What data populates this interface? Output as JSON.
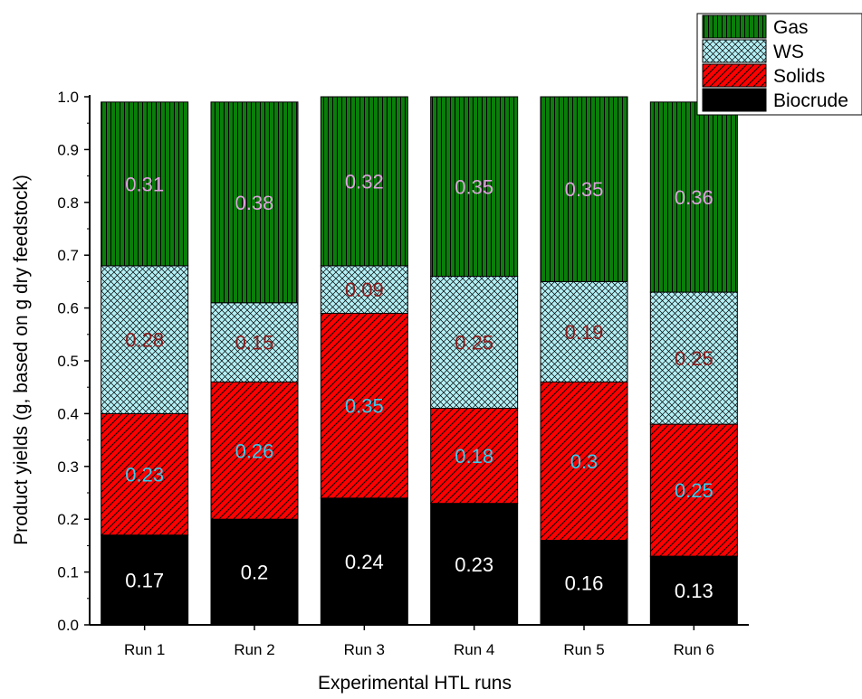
{
  "chart_data": {
    "type": "bar",
    "stacked": true,
    "categories": [
      "Run 1",
      "Run 2",
      "Run 3",
      "Run 4",
      "Run 5",
      "Run 6"
    ],
    "series": [
      {
        "name": "Biocrude",
        "values": [
          0.17,
          0.2,
          0.24,
          0.23,
          0.16,
          0.13
        ],
        "labels": [
          "0.17",
          "0.2",
          "0.24",
          "0.23",
          "0.16",
          "0.13"
        ],
        "color": "#000000",
        "pattern": "solid",
        "label_color": "#ffffff"
      },
      {
        "name": "Solids",
        "values": [
          0.23,
          0.26,
          0.35,
          0.18,
          0.3,
          0.25
        ],
        "labels": [
          "0.23",
          "0.26",
          "0.35",
          "0.18",
          "0.3",
          "0.25"
        ],
        "color": "#ff0000",
        "pattern": "diagonal-hatch",
        "label_color": "#33ccee"
      },
      {
        "name": "WS",
        "values": [
          0.28,
          0.15,
          0.09,
          0.25,
          0.19,
          0.25
        ],
        "labels": [
          "0.28",
          "0.15",
          "0.09",
          "0.25",
          "0.19",
          "0.25"
        ],
        "color": "#b3f0f5",
        "pattern": "crosshatch",
        "label_color": "#8b1a1a"
      },
      {
        "name": "Gas",
        "values": [
          0.31,
          0.38,
          0.32,
          0.35,
          0.35,
          0.36
        ],
        "labels": [
          "0.31",
          "0.38",
          "0.32",
          "0.35",
          "0.35",
          "0.36"
        ],
        "color": "#0a7d0a",
        "pattern": "vertical-lines",
        "label_color": "#e0a0e0"
      }
    ],
    "xlabel": "Experimental HTL runs",
    "ylabel": "Product yields (g, based on g dry feedstock)",
    "ylim": [
      0,
      1.0
    ],
    "yticks": [
      "0.0",
      "0.1",
      "0.2",
      "0.3",
      "0.4",
      "0.5",
      "0.6",
      "0.7",
      "0.8",
      "0.9",
      "1.0"
    ],
    "legend": {
      "position": "top-right",
      "order": [
        "Gas",
        "WS",
        "Solids",
        "Biocrude"
      ]
    },
    "grid": false
  }
}
